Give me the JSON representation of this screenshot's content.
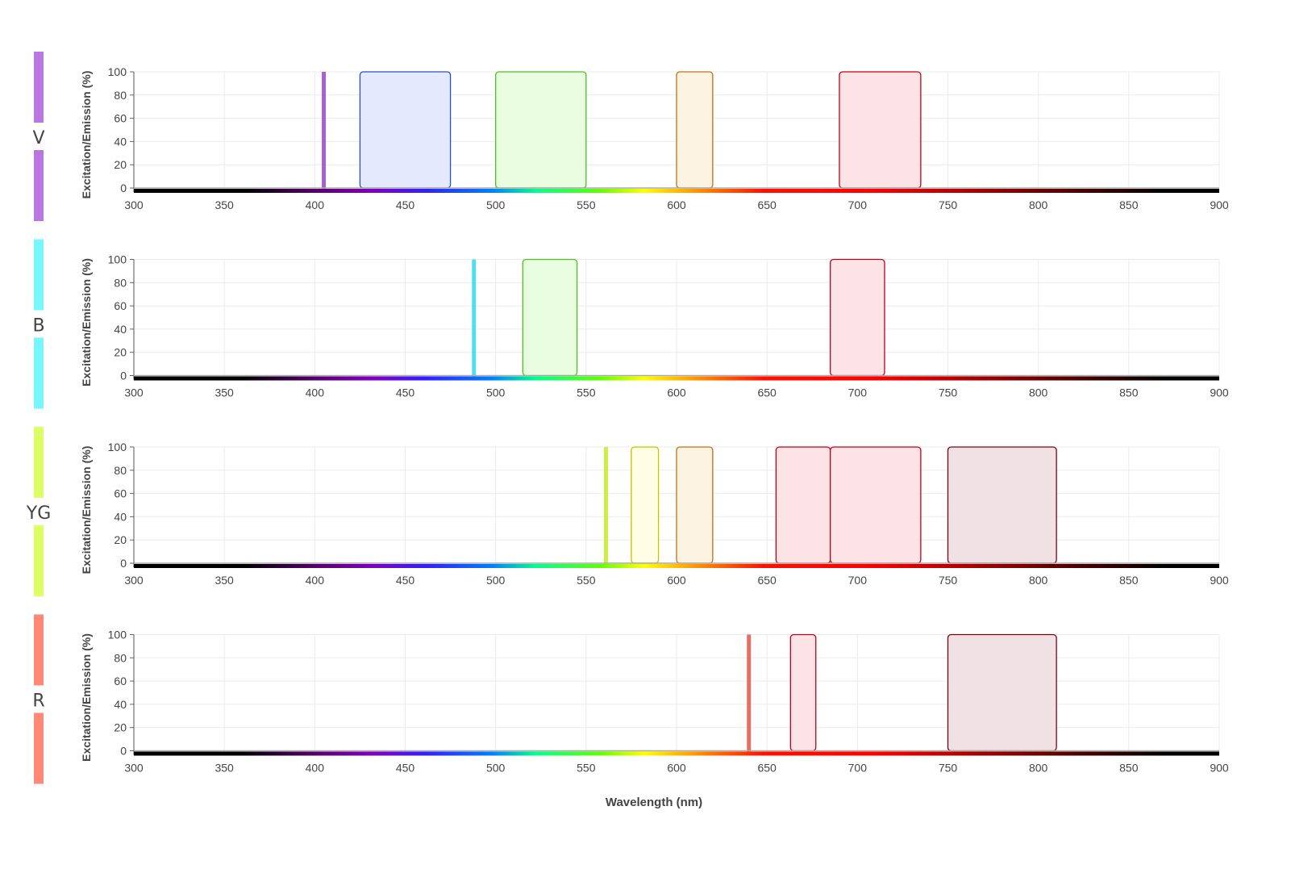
{
  "chart_data": {
    "type": "bar",
    "title": "",
    "xlabel": "Wavelength (nm)",
    "ylabel": "Excitation/Emission (%)",
    "xlim": [
      300,
      900
    ],
    "ylim": [
      0,
      100
    ],
    "x_ticks": [
      300,
      350,
      400,
      450,
      500,
      550,
      600,
      650,
      700,
      750,
      800,
      850,
      900
    ],
    "y_ticks": [
      0,
      20,
      40,
      60,
      80,
      100
    ],
    "grid": true,
    "panels": [
      {
        "label": "V",
        "laser_color": "#bb77e0",
        "laser_nm": 405,
        "laser_line_color": "#9b4fcc",
        "filters": [
          {
            "range": [
              425,
              475
            ],
            "value": 100,
            "stroke": "#2a4fc0",
            "fill": "#e4e9fd"
          },
          {
            "range": [
              500,
              550
            ],
            "value": 100,
            "stroke": "#4ec020",
            "fill": "#e9fde1"
          },
          {
            "range": [
              600,
              620
            ],
            "value": 100,
            "stroke": "#c07010",
            "fill": "#fdf3e2"
          },
          {
            "range": [
              690,
              735
            ],
            "value": 100,
            "stroke": "#c00018",
            "fill": "#fce4e6"
          }
        ]
      },
      {
        "label": "B",
        "laser_color": "#77f7ff",
        "laser_nm": 488,
        "laser_line_color": "#3fdde6",
        "filters": [
          {
            "range": [
              515,
              545
            ],
            "value": 100,
            "stroke": "#4ec020",
            "fill": "#e9fde1"
          },
          {
            "range": [
              685,
              715
            ],
            "value": 100,
            "stroke": "#c00018",
            "fill": "#fce4e6"
          }
        ]
      },
      {
        "label": "YG",
        "laser_color": "#ddff66",
        "laser_nm": 561,
        "laser_line_color": "#c4ee30",
        "filters": [
          {
            "range": [
              575,
              590
            ],
            "value": 100,
            "stroke": "#c8c000",
            "fill": "#fffde4"
          },
          {
            "range": [
              600,
              620
            ],
            "value": 100,
            "stroke": "#c07010",
            "fill": "#fdf3e2"
          },
          {
            "range": [
              655,
              685
            ],
            "value": 100,
            "stroke": "#c00018",
            "fill": "#fce4e6"
          },
          {
            "range": [
              685,
              735
            ],
            "value": 100,
            "stroke": "#c00018",
            "fill": "#fce4e6"
          },
          {
            "range": [
              750,
              810
            ],
            "value": 100,
            "stroke": "#800010",
            "fill": "#f0e2e4"
          }
        ]
      },
      {
        "label": "R",
        "laser_color": "#ff8877",
        "laser_nm": 640,
        "laser_line_color": "#e06050",
        "filters": [
          {
            "range": [
              663,
              677
            ],
            "value": 100,
            "stroke": "#c00018",
            "fill": "#fce4e6"
          },
          {
            "range": [
              750,
              810
            ],
            "value": 100,
            "stroke": "#800010",
            "fill": "#f0e2e4"
          }
        ]
      }
    ]
  }
}
